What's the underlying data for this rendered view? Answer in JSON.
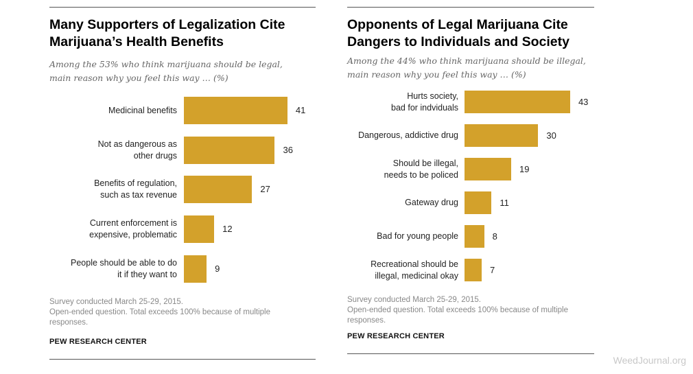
{
  "chart_data": [
    {
      "type": "bar",
      "orientation": "horizontal",
      "title": "Many Supporters of Legalization Cite Marijuana's Health Benefits",
      "title_lines": [
        "Many Supporters of Legalization Cite",
        "Marijuana’s Health Benefits"
      ],
      "subtitle_lines": [
        "Among the 53% who think marijuana should be legal,",
        "main reason why you feel this way … (%)"
      ],
      "categories": [
        [
          "Medicinal benefits"
        ],
        [
          "Not as dangerous as",
          "other drugs"
        ],
        [
          "Benefits of regulation,",
          "such as tax revenue"
        ],
        [
          "Current enforcement is",
          "expensive, problematic"
        ],
        [
          "People should be able to do",
          "it if they want to"
        ]
      ],
      "values": [
        41,
        36,
        27,
        12,
        9
      ],
      "xlabel": "",
      "ylabel": "",
      "xlim": [
        0,
        41
      ],
      "bar_color": "#d3a12b",
      "note_lines": [
        "Survey conducted March 25-29, 2015.",
        "Open-ended question. Total exceeds 100% because of multiple",
        "responses."
      ],
      "source": "PEW RESEARCH CENTER"
    },
    {
      "type": "bar",
      "orientation": "horizontal",
      "title": "Opponents of Legal Marijuana Cite Dangers to Individuals and Society",
      "title_lines": [
        "Opponents of Legal Marijuana Cite",
        "Dangers to Individuals and Society"
      ],
      "subtitle_lines": [
        "Among the 44% who think marijuana should be illegal,",
        "main reason why you feel this way … (%)"
      ],
      "categories": [
        [
          "Hurts society,",
          "bad for indviduals"
        ],
        [
          "Dangerous, addictive drug"
        ],
        [
          "Should be illegal,",
          "needs to be policed"
        ],
        [
          "Gateway drug"
        ],
        [
          "Bad for young people"
        ],
        [
          "Recreational should be",
          "illegal, medicinal okay"
        ]
      ],
      "values": [
        43,
        30,
        19,
        11,
        8,
        7
      ],
      "xlabel": "",
      "ylabel": "",
      "xlim": [
        0,
        43
      ],
      "bar_color": "#d3a12b",
      "note_lines": [
        "Survey conducted March 25-29, 2015.",
        "Open-ended question. Total exceeds 100% because of multiple",
        "responses."
      ],
      "source": "PEW RESEARCH CENTER"
    }
  ],
  "watermark": "WeedJournal.org"
}
